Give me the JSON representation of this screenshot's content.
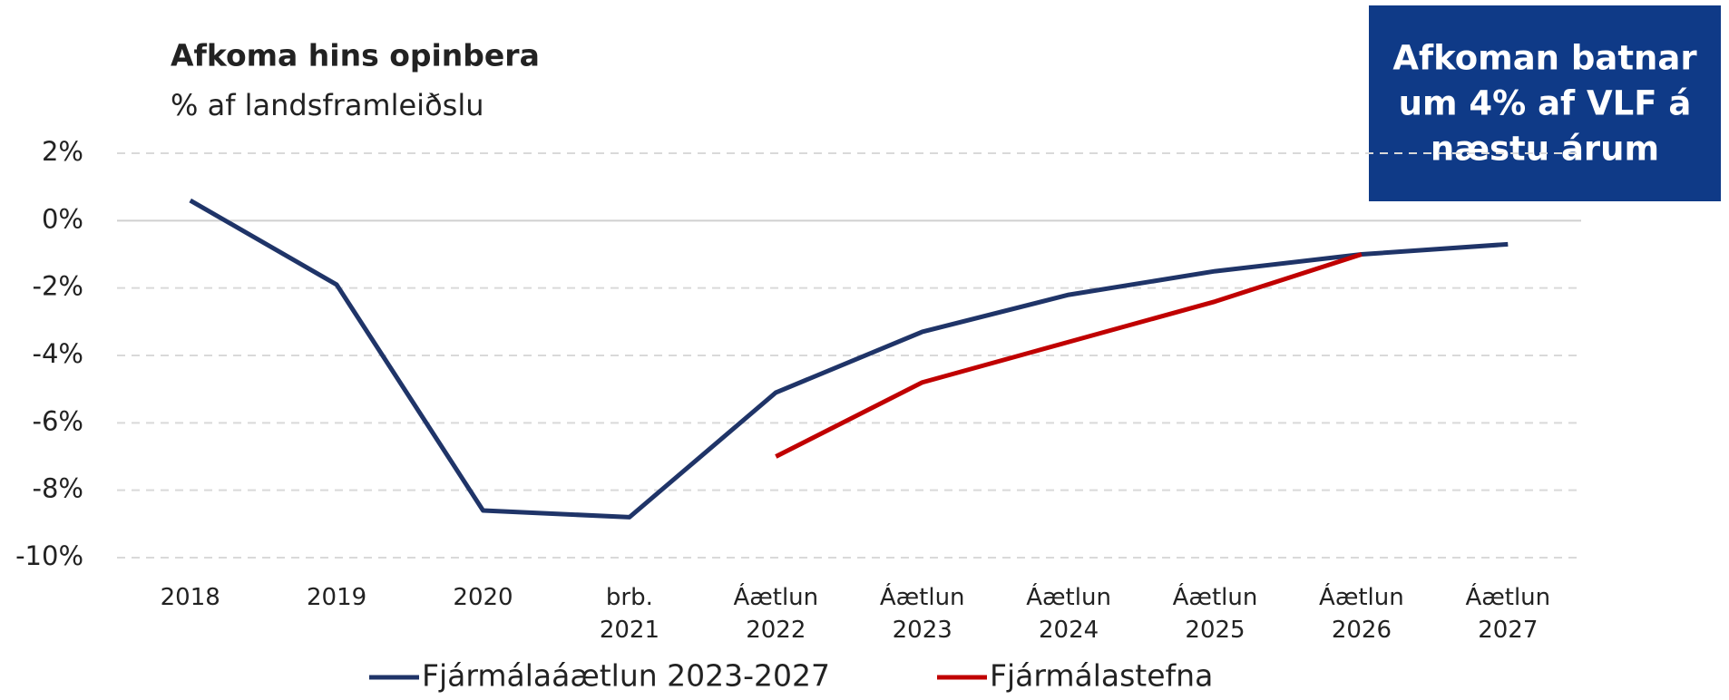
{
  "chart_data": {
    "type": "line",
    "title": "Afkoma hins opinbera",
    "subtitle": "% af landsframleiðslu",
    "annotation": [
      "Afkoman batnar",
      "um 4% af VLF á",
      "næstu árum"
    ],
    "categories": [
      "2018",
      "2019",
      "2020",
      "brb. 2021",
      "Áætlun 2022",
      "Áætlun 2023",
      "Áætlun 2024",
      "Áætlun 2025",
      "Áætlun 2026",
      "Áætlun 2027"
    ],
    "series": [
      {
        "name": "Fjármálaáætlun 2023-2027",
        "color": "#1f3468",
        "values": [
          0.6,
          -1.9,
          -8.6,
          -8.8,
          -5.1,
          -3.3,
          -2.2,
          -1.5,
          -1.0,
          -0.7
        ]
      },
      {
        "name": "Fjármálastefna",
        "color": "#c00000",
        "values": [
          null,
          null,
          null,
          null,
          -7.0,
          -4.8,
          -3.6,
          -2.4,
          -1.0,
          null
        ]
      }
    ],
    "ylim": [
      -10,
      2
    ],
    "yticks": [
      {
        "value": -10,
        "label": "-10%"
      },
      {
        "value": -8,
        "label": "-8%"
      },
      {
        "value": -6,
        "label": "-6%"
      },
      {
        "value": -4,
        "label": "-4%"
      },
      {
        "value": -2,
        "label": "-2%"
      },
      {
        "value": 0,
        "label": "0%"
      },
      {
        "value": 2,
        "label": "2%"
      }
    ],
    "grid": true,
    "legend": "bottom"
  }
}
